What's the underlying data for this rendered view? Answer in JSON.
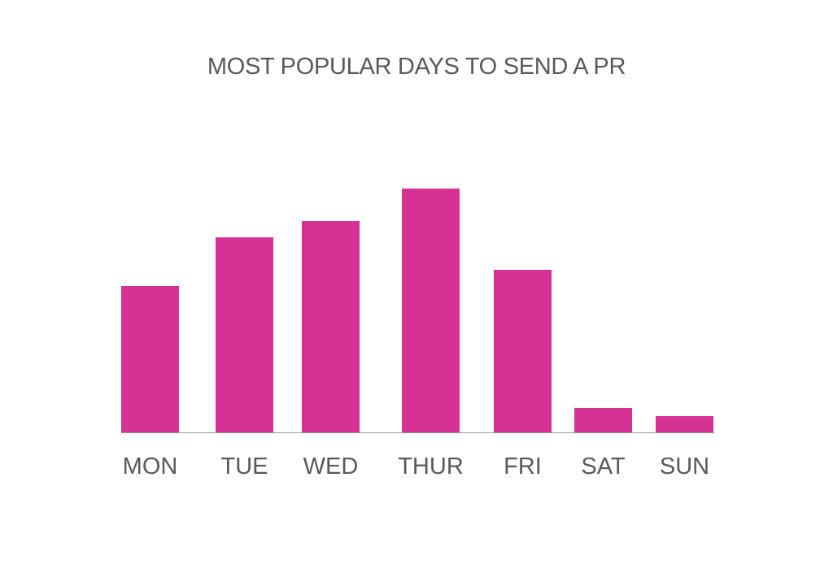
{
  "chart_data": {
    "type": "bar",
    "title": "MOST POPULAR DAYS TO SEND A PR",
    "categories": [
      "MON",
      "TUE",
      "WED",
      "THUR",
      "FRI",
      "SAT",
      "SUN"
    ],
    "values": [
      180,
      240,
      260,
      300,
      200,
      30,
      20
    ],
    "bar_color": "#d63194",
    "axis_color": "#999999",
    "text_color": "#595959",
    "ylim": [
      0,
      300
    ],
    "grid": false,
    "legend": "none"
  }
}
